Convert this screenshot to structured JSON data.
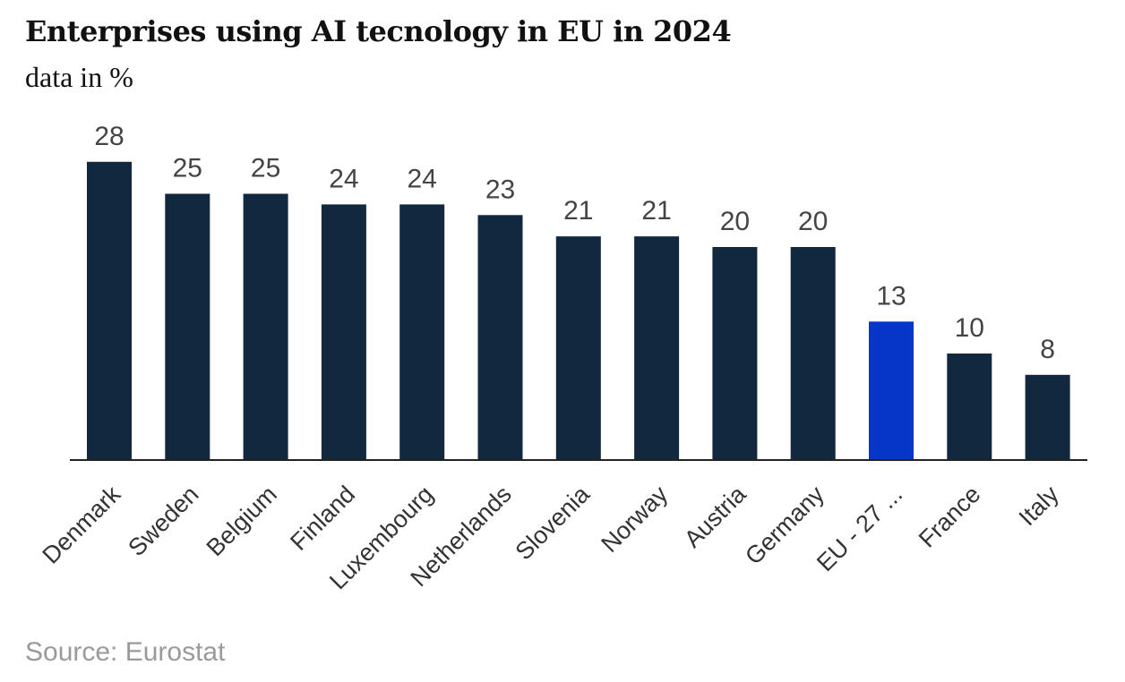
{
  "title": "Enterprises using AI tecnology in EU in 2024",
  "subtitle": "data in %",
  "source": "Source: Eurostat",
  "colors": {
    "bar": "#12283f",
    "highlight": "#0536c8",
    "axis": "#222222"
  },
  "chart_data": {
    "type": "bar",
    "title": "Enterprises using AI tecnology in EU in 2024",
    "subtitle": "data in %",
    "xlabel": "",
    "ylabel": "",
    "ylim": [
      0,
      30
    ],
    "grid": false,
    "categories": [
      "Denmark",
      "Sweden",
      "Belgium",
      "Finland",
      "Luxembourg",
      "Netherlands",
      "Slovenia",
      "Norway",
      "Austria",
      "Germany",
      "EU - 27 ...",
      "France",
      "Italy"
    ],
    "values": [
      28,
      25,
      25,
      24,
      24,
      23,
      21,
      21,
      20,
      20,
      13,
      10,
      8
    ],
    "highlight_category": "EU - 27 ..."
  }
}
